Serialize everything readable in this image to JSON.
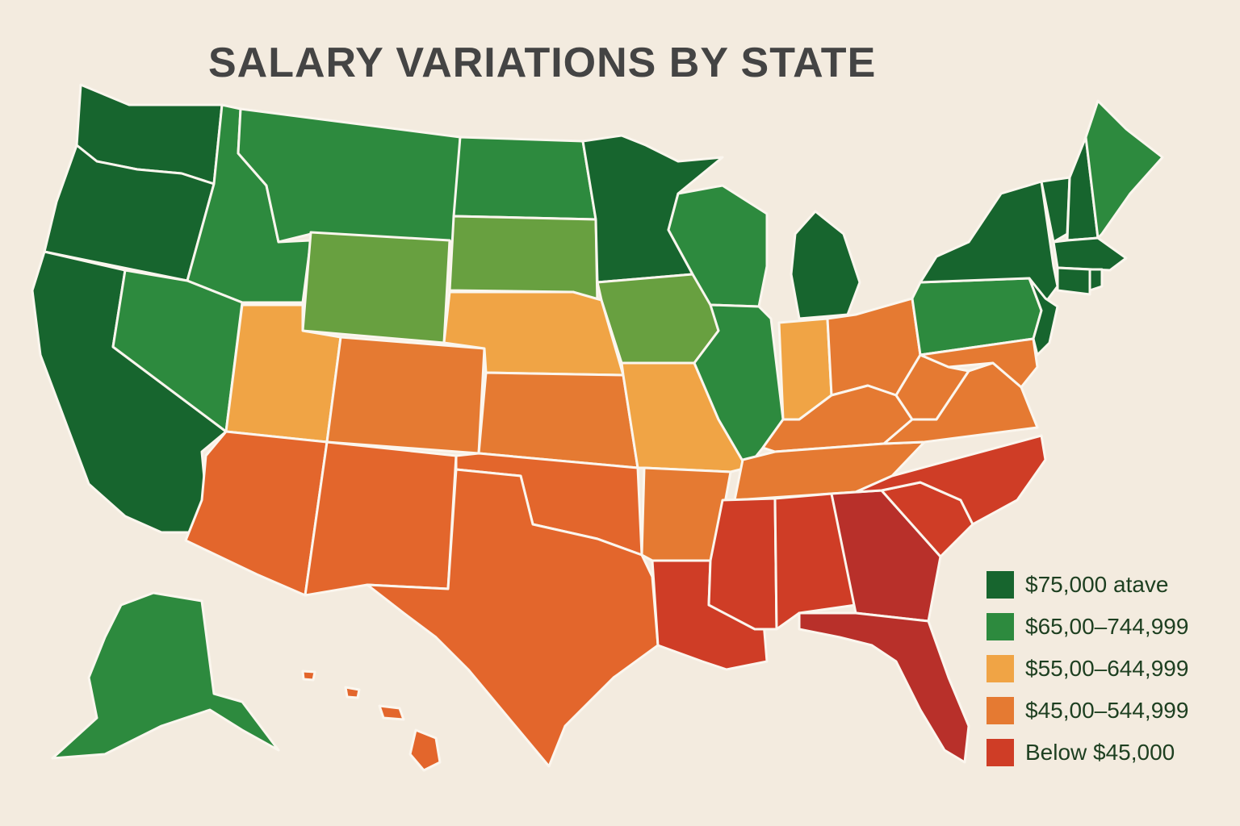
{
  "title": "SALARY VARIATIONS BY STATE",
  "colors": {
    "tier1": "#17652e",
    "tier2": "#2d8a3e",
    "tier2b": "#68a040",
    "tier3": "#f0a445",
    "tier4": "#e57a32",
    "tier4b": "#e3662c",
    "tier5": "#cf3d26",
    "tier5b": "#b8302a"
  },
  "legend": [
    {
      "label": "$75,000 atave",
      "color": "#17652e"
    },
    {
      "label": "$65,00–744,999",
      "color": "#2d8a3e"
    },
    {
      "label": "$55,00–644,999",
      "color": "#f0a445"
    },
    {
      "label": "$45,00–544,999",
      "color": "#e57a32"
    },
    {
      "label": "Below $45,000",
      "color": "#cf3d26"
    }
  ]
}
